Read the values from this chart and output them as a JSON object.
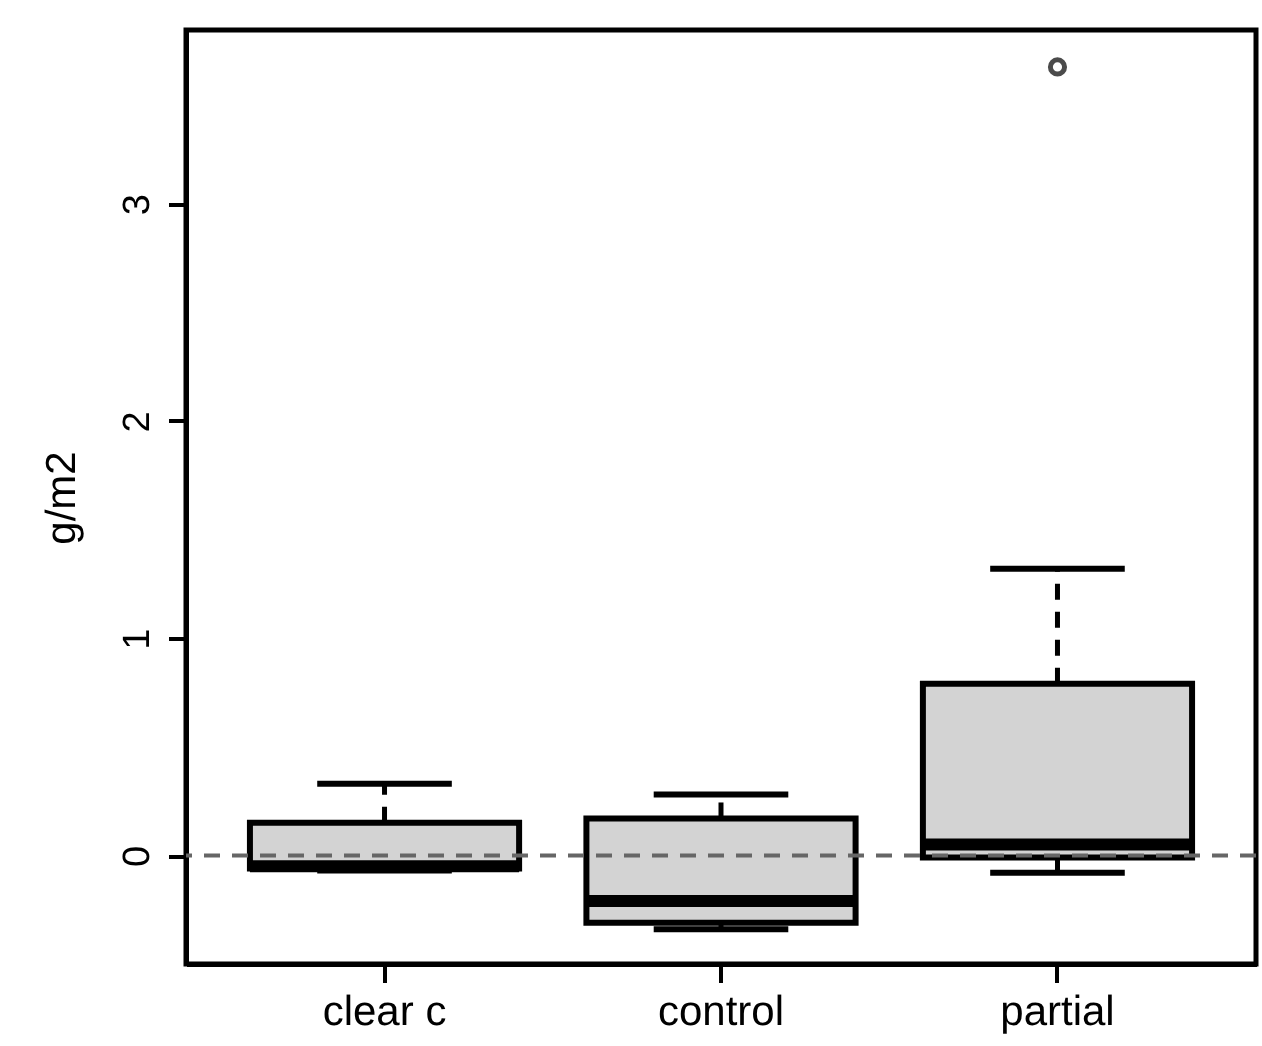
{
  "chart_data": {
    "type": "box",
    "ylabel": "g/m2",
    "categories": [
      "clear c",
      "control",
      "partial"
    ],
    "series": [
      {
        "color": "#d3d3d3",
        "boxes": [
          {
            "low": -0.07,
            "q1": -0.06,
            "median": -0.05,
            "q3": 0.15,
            "high": 0.33
          },
          {
            "low": -0.34,
            "q1": -0.31,
            "median": -0.21,
            "q3": 0.17,
            "high": 0.28
          },
          {
            "low": -0.08,
            "q1": -0.01,
            "median": 0.05,
            "q3": 0.79,
            "high": 1.32,
            "outliers": [
              3.63
            ]
          }
        ]
      }
    ],
    "ylim": [
      -0.5,
      3.8
    ],
    "yticks": [
      0,
      1,
      2,
      3
    ],
    "ref_lines": [
      {
        "axis": "y",
        "value": 0,
        "color": "#666666",
        "line_style": "dashed"
      }
    ]
  }
}
